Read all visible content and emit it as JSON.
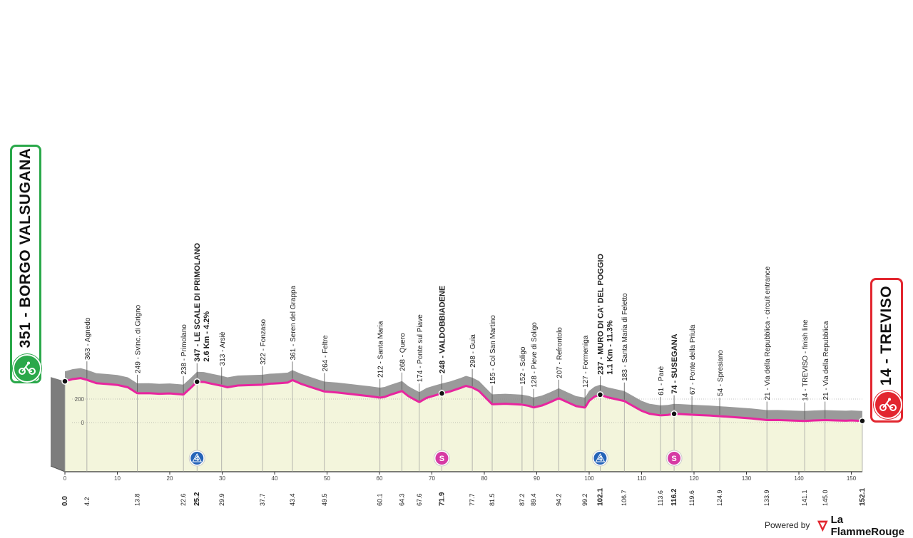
{
  "start": {
    "label": "351 - BORGO VALSUGANA",
    "icon": "cyclist-icon",
    "color": "#2aa84a"
  },
  "finish": {
    "label": "14 - TREVISO",
    "icon": "cyclist-icon",
    "color": "#e2262f"
  },
  "axis": {
    "alt_ticks": [
      "200",
      "0"
    ],
    "km_ticks": [
      "0",
      "10",
      "20",
      "30",
      "40",
      "50",
      "60",
      "70",
      "80",
      "90",
      "100",
      "110",
      "120",
      "130",
      "140",
      "150"
    ]
  },
  "places": [
    {
      "km": "0.0",
      "km_val": 0,
      "alt": 351,
      "label": "",
      "bold": true,
      "marker": "dot"
    },
    {
      "km": "4.2",
      "km_val": 4.2,
      "alt": 363,
      "label": "363 - Agnedo",
      "bold": false
    },
    {
      "km": "13.8",
      "km_val": 13.8,
      "alt": 249,
      "label": "249 - Svinc. di Grigno",
      "bold": false
    },
    {
      "km": "22.6",
      "km_val": 22.6,
      "alt": 238,
      "label": "238 - Primolano",
      "bold": false
    },
    {
      "km": "25.2",
      "km_val": 25.2,
      "alt": 347,
      "label": "347 - LE SCALE DI PRIMOLANO",
      "sub": "2.6 Km - 4.2%",
      "bold": true,
      "marker": "dot",
      "badge": "4",
      "badge_type": "climb"
    },
    {
      "km": "29.9",
      "km_val": 29.9,
      "alt": 313,
      "label": "313 - Arsiè",
      "bold": false
    },
    {
      "km": "37.7",
      "km_val": 37.7,
      "alt": 322,
      "label": "322 - Fonzaso",
      "bold": false
    },
    {
      "km": "43.4",
      "km_val": 43.4,
      "alt": 361,
      "label": "361 - Seren del Grappa",
      "bold": false
    },
    {
      "km": "49.5",
      "km_val": 49.5,
      "alt": 264,
      "label": "264 - Feltre",
      "bold": false
    },
    {
      "km": "60.1",
      "km_val": 60.1,
      "alt": 212,
      "label": "212 - Santa Maria",
      "bold": false
    },
    {
      "km": "64.3",
      "km_val": 64.3,
      "alt": 268,
      "label": "268 - Quero",
      "bold": false
    },
    {
      "km": "67.6",
      "km_val": 67.6,
      "alt": 174,
      "label": "174 - Ponte sul Piave",
      "bold": false
    },
    {
      "km": "71.9",
      "km_val": 71.9,
      "alt": 248,
      "label": "248 - VALDOBBIADENE",
      "bold": true,
      "marker": "dot",
      "badge": "S",
      "badge_type": "sprint"
    },
    {
      "km": "77.7",
      "km_val": 77.7,
      "alt": 298,
      "label": "298 - Guia",
      "bold": false
    },
    {
      "km": "81.5",
      "km_val": 81.5,
      "alt": 155,
      "label": "155 - Col San Martino",
      "bold": false
    },
    {
      "km": "87.2",
      "km_val": 87.2,
      "alt": 152,
      "label": "152 - Soligo",
      "bold": false
    },
    {
      "km": "89.4",
      "km_val": 89.4,
      "alt": 128,
      "label": "128 - Pieve di Soligo",
      "bold": false
    },
    {
      "km": "94.2",
      "km_val": 94.2,
      "alt": 207,
      "label": "207 - Refrontolo",
      "bold": false
    },
    {
      "km": "99.2",
      "km_val": 99.2,
      "alt": 127,
      "label": "127 - Formeniga",
      "bold": false
    },
    {
      "km": "102.1",
      "km_val": 102.1,
      "alt": 237,
      "label": "237 - MURO DI CA' DEL POGGIO",
      "sub": "1.1 Km - 11.3%",
      "bold": true,
      "marker": "dot",
      "badge": "4",
      "badge_type": "climb"
    },
    {
      "km": "106.7",
      "km_val": 106.7,
      "alt": 183,
      "label": "183 - Santa Maria di Feletto",
      "bold": false
    },
    {
      "km": "113.6",
      "km_val": 113.6,
      "alt": 61,
      "label": "61 - Parè",
      "bold": false
    },
    {
      "km": "116.2",
      "km_val": 116.2,
      "alt": 74,
      "label": "74 - SUSEGANA",
      "bold": true,
      "marker": "dot",
      "badge": "S",
      "badge_type": "sprint"
    },
    {
      "km": "119.6",
      "km_val": 119.6,
      "alt": 67,
      "label": "67 - Ponte della Priula",
      "bold": false
    },
    {
      "km": "124.9",
      "km_val": 124.9,
      "alt": 54,
      "label": "54 - Spresiano",
      "bold": false
    },
    {
      "km": "133.9",
      "km_val": 133.9,
      "alt": 21,
      "label": "21 - Via della Repubblica - circuit entrance",
      "bold": false
    },
    {
      "km": "141.1",
      "km_val": 141.1,
      "alt": 14,
      "label": "14 - TREVISO - finish line",
      "bold": false
    },
    {
      "km": "145.0",
      "km_val": 145.0,
      "alt": 21,
      "label": "21 - Via della Repubblica",
      "bold": false
    },
    {
      "km": "152.1",
      "km_val": 152.1,
      "alt": 14,
      "label": "",
      "bold": true,
      "marker": "dot"
    }
  ],
  "profile_points": [
    [
      0,
      351
    ],
    [
      1.5,
      370
    ],
    [
      3,
      378
    ],
    [
      4.2,
      363
    ],
    [
      6,
      335
    ],
    [
      8,
      328
    ],
    [
      10,
      320
    ],
    [
      12,
      300
    ],
    [
      13.8,
      249
    ],
    [
      16,
      250
    ],
    [
      18,
      245
    ],
    [
      20,
      248
    ],
    [
      22.6,
      238
    ],
    [
      24,
      295
    ],
    [
      25.2,
      347
    ],
    [
      26.5,
      345
    ],
    [
      28,
      330
    ],
    [
      29.9,
      313
    ],
    [
      31,
      300
    ],
    [
      33,
      315
    ],
    [
      35,
      318
    ],
    [
      37.7,
      322
    ],
    [
      39,
      330
    ],
    [
      41,
      335
    ],
    [
      42.5,
      340
    ],
    [
      43.4,
      361
    ],
    [
      45,
      330
    ],
    [
      47,
      300
    ],
    [
      49.5,
      264
    ],
    [
      52,
      255
    ],
    [
      55,
      240
    ],
    [
      58,
      225
    ],
    [
      60.1,
      212
    ],
    [
      61,
      218
    ],
    [
      62,
      235
    ],
    [
      64.3,
      268
    ],
    [
      65.5,
      225
    ],
    [
      66.5,
      200
    ],
    [
      67.6,
      174
    ],
    [
      69,
      210
    ],
    [
      70.5,
      230
    ],
    [
      71.9,
      248
    ],
    [
      73.5,
      265
    ],
    [
      75.5,
      295
    ],
    [
      76.5,
      312
    ],
    [
      77.7,
      298
    ],
    [
      79,
      268
    ],
    [
      80.5,
      200
    ],
    [
      81.5,
      155
    ],
    [
      84,
      160
    ],
    [
      86,
      155
    ],
    [
      87.2,
      152
    ],
    [
      88.5,
      142
    ],
    [
      89.4,
      128
    ],
    [
      91,
      145
    ],
    [
      92.5,
      172
    ],
    [
      94.2,
      207
    ],
    [
      96,
      170
    ],
    [
      97.5,
      140
    ],
    [
      99.2,
      127
    ],
    [
      100,
      185
    ],
    [
      101,
      220
    ],
    [
      102.1,
      237
    ],
    [
      103.5,
      215
    ],
    [
      105,
      200
    ],
    [
      106.7,
      183
    ],
    [
      108,
      150
    ],
    [
      110,
      100
    ],
    [
      111.5,
      75
    ],
    [
      113.6,
      61
    ],
    [
      115,
      65
    ],
    [
      116.2,
      74
    ],
    [
      117.5,
      72
    ],
    [
      119.6,
      67
    ],
    [
      121,
      64
    ],
    [
      123,
      60
    ],
    [
      124.9,
      54
    ],
    [
      128,
      45
    ],
    [
      131,
      35
    ],
    [
      133.9,
      21
    ],
    [
      136,
      22
    ],
    [
      139,
      17
    ],
    [
      141.1,
      14
    ],
    [
      143,
      18
    ],
    [
      145.0,
      21
    ],
    [
      147,
      18
    ],
    [
      149,
      16
    ],
    [
      150,
      18
    ],
    [
      152.1,
      14
    ]
  ],
  "logo": {
    "powered_by": "Powered by",
    "brand": "La FlammeRouge",
    "icon": "flamme-rouge-icon"
  },
  "colors": {
    "route": "#e8259f",
    "ground": "#f3f5dc",
    "relief": "#9a9a9a",
    "climb_badge": "#2563b8",
    "sprint_badge": "#d63aa4"
  }
}
